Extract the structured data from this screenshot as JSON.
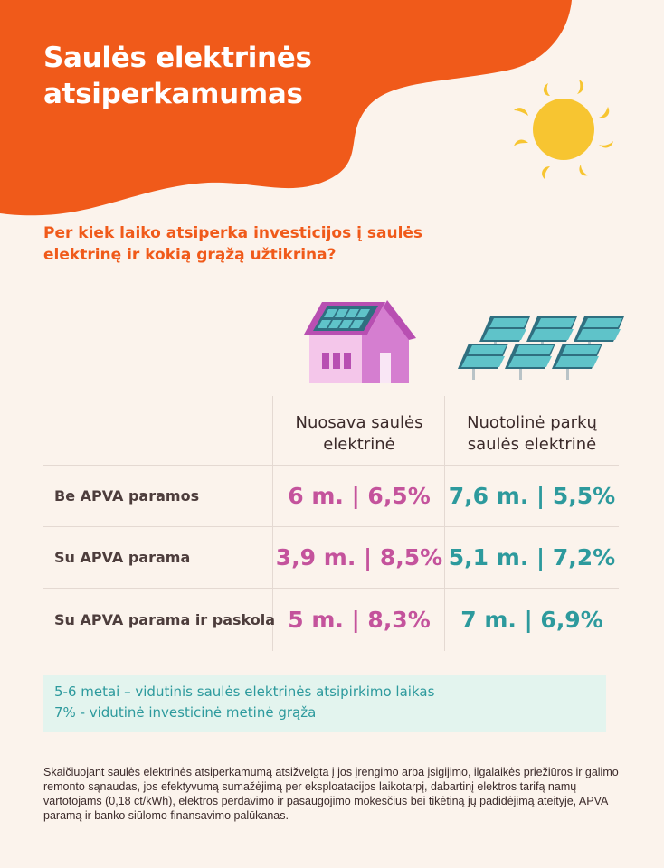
{
  "header": {
    "title_line1": "Saulės elektrinės",
    "title_line2": "atsiperkamumas"
  },
  "subtitle": {
    "line1": "Per kiek laiko atsiperka investicijos į saulės",
    "line2": "elektrinę ir kokią grąžą užtikrina?"
  },
  "table": {
    "columns": [
      {
        "line1": "Nuosava saulės",
        "line2": "elektrinė"
      },
      {
        "line1": "Nuotolinė parkų",
        "line2": "saulės elektrinė"
      }
    ],
    "rows": [
      {
        "label": "Be APVA paramos",
        "own": "6 m. | 6,5%",
        "remote": "7,6 m. | 5,5%"
      },
      {
        "label": "Su APVA parama",
        "own": "3,9 m. | 8,5%",
        "remote": "5,1 m. | 7,2%"
      },
      {
        "label": "Su APVA parama ir paskola",
        "own": "5 m. | 8,3%",
        "remote": "7 m. | 6,9%"
      }
    ]
  },
  "info": {
    "line1": "5-6 metai – vidutinis saulės elektrinės atsipirkimo laikas",
    "line2": "7% - vidutinė investicinė metinė grąža"
  },
  "footnote": "Skaičiuojant saulės elektrinės atsiperkamumą atsižvelgta į jos įrengimo arba įsigijimo, ilgalaikės priežiūros ir galimo remonto sąnaudas, jos efektyvumą sumažėjimą per eksploatacijos laikotarpį, dabartinį elektros tarifą namų vartotojams (0,18 ct/kWh), elektros perdavimo ir pasaugojimo mokesčius bei tikėtiną jų padidėjimą ateityje, APVA paramą ir banko siūlomo finansavimo palūkanas.",
  "colors": {
    "orange": "#f05a1a",
    "pink": "#c4539c",
    "teal": "#2d9a9d",
    "sun": "#f7c531",
    "background": "#fbf3ec"
  },
  "icons": [
    "sun-icon",
    "house-solar-icon",
    "solar-park-icon"
  ]
}
